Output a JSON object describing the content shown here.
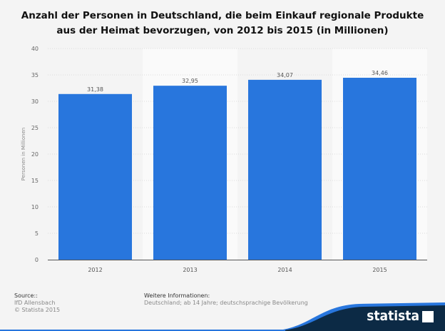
{
  "title": "Anzahl der Personen in Deutschland, die beim Einkauf regionale Produkte aus der Heimat bevorzugen, von 2012 bis 2015 (in Millionen)",
  "chart_data": {
    "type": "bar",
    "title": "Anzahl der Personen in Deutschland, die beim Einkauf regionale Produkte aus der Heimat bevorzugen, von 2012 bis 2015 (in Millionen)",
    "categories": [
      "2012",
      "2013",
      "2014",
      "2015"
    ],
    "values": [
      31.38,
      32.95,
      34.07,
      34.46
    ],
    "data_labels": [
      "31,38",
      "32,95",
      "34,07",
      "34,46"
    ],
    "xlabel": "",
    "ylabel": "Personen in Millionen",
    "ylim": [
      0,
      40
    ],
    "yticks": [
      0,
      5,
      10,
      15,
      20,
      25,
      30,
      35,
      40
    ],
    "grid": true,
    "bar_color": "#2876dd"
  },
  "footer": {
    "source_label": "Source::",
    "source": "IfD Allensbach",
    "copyright": "© Statista 2015",
    "info_label": "Weitere Informationen:",
    "info": "Deutschland; ab 14 Jahre; deutschsprachige Bevölkerung"
  },
  "logo": "statista"
}
